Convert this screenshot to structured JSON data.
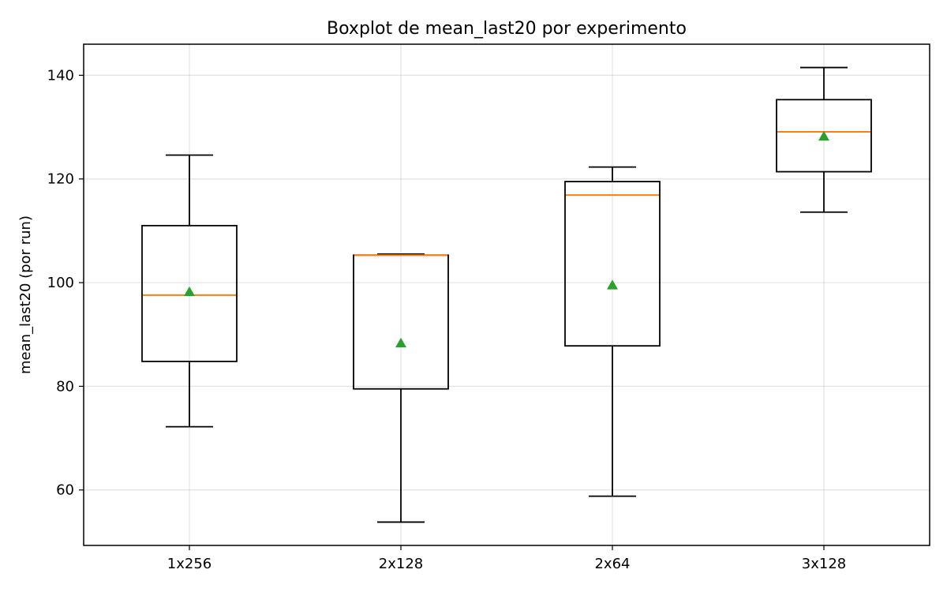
{
  "chart_data": {
    "type": "boxplot",
    "title": "Boxplot de mean_last20 por experimento",
    "xlabel": "",
    "ylabel": "mean_last20 (por run)",
    "ylim": [
      49.3,
      146.0
    ],
    "yticks": [
      60,
      80,
      100,
      120,
      140
    ],
    "ytick_labels": [
      "60",
      "80",
      "100",
      "120",
      "140"
    ],
    "grid": true,
    "colors": {
      "median": "#ff7f0e",
      "mean": "#2ca02c",
      "box": "#000000",
      "grid": "#b0b0b0"
    },
    "categories": [
      "1x256",
      "2x128",
      "2x64",
      "3x128"
    ],
    "boxes": [
      {
        "label": "1x256",
        "whislo": 72.2,
        "q1": 84.8,
        "med": 97.6,
        "q3": 111.0,
        "whishi": 124.6,
        "mean": 98.2
      },
      {
        "label": "2x128",
        "whislo": 53.8,
        "q1": 79.5,
        "med": 105.3,
        "q3": 105.3,
        "whishi": 105.5,
        "mean": 88.3
      },
      {
        "label": "2x64",
        "whislo": 58.8,
        "q1": 87.8,
        "med": 116.9,
        "q3": 119.5,
        "whishi": 122.3,
        "mean": 99.5
      },
      {
        "label": "3x128",
        "whislo": 113.6,
        "q1": 121.4,
        "med": 129.1,
        "q3": 135.3,
        "whishi": 141.5,
        "mean": 128.2
      }
    ]
  }
}
